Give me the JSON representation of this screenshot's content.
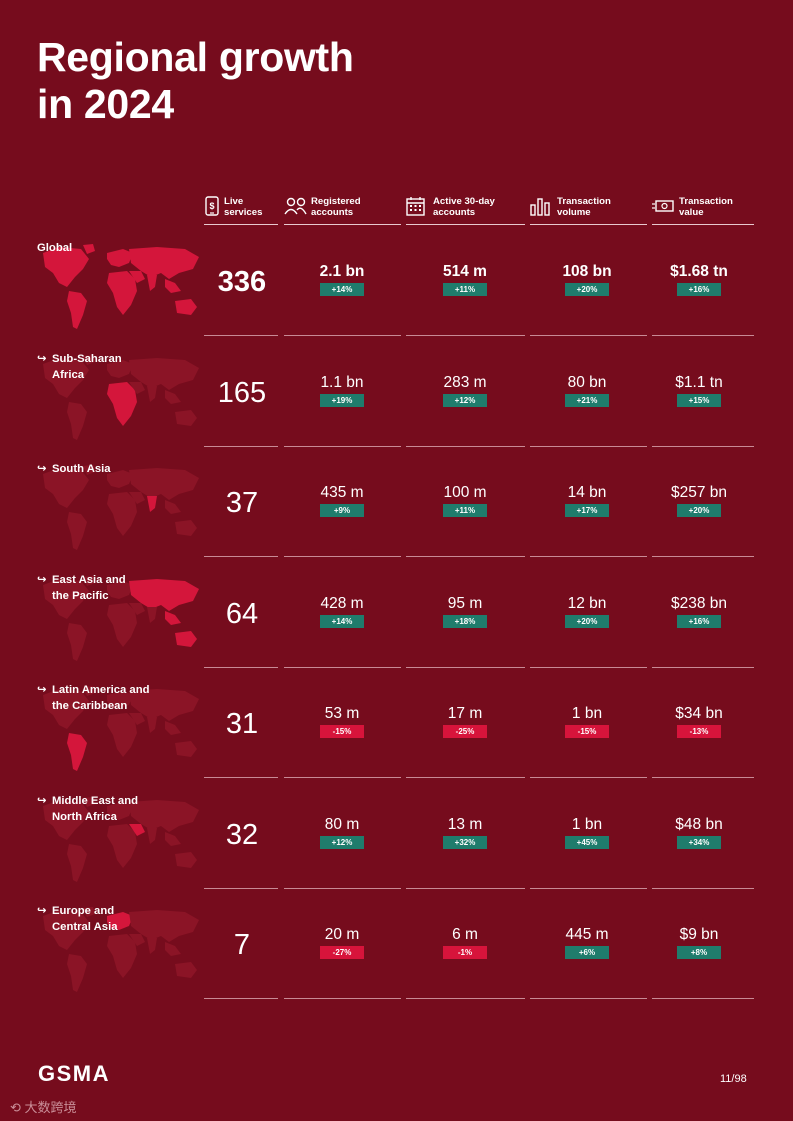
{
  "title": [
    "Regional growth",
    "in 2024"
  ],
  "columns": [
    {
      "icon": "phone-dollar-icon",
      "label": [
        "Live",
        "services"
      ]
    },
    {
      "icon": "people-icon",
      "label": [
        "Registered",
        "accounts"
      ]
    },
    {
      "icon": "calendar-icon",
      "label": [
        "Active 30-day",
        "accounts"
      ]
    },
    {
      "icon": "bar-chart-icon",
      "label": [
        "Transaction",
        "volume"
      ]
    },
    {
      "icon": "banknote-icon",
      "label": [
        "Transaction",
        "value"
      ]
    }
  ],
  "regions": [
    {
      "name": [
        "Global"
      ],
      "highlight": "global",
      "live": "336",
      "cells": [
        {
          "value": "2.1 bn",
          "change": "+14%"
        },
        {
          "value": "514 m",
          "change": "+11%"
        },
        {
          "value": "108 bn",
          "change": "+20%"
        },
        {
          "value": "$1.68 tn",
          "change": "+16%"
        }
      ]
    },
    {
      "name": [
        "Sub-Saharan",
        "Africa"
      ],
      "highlight": "ssa",
      "live": "165",
      "cells": [
        {
          "value": "1.1 bn",
          "change": "+19%"
        },
        {
          "value": "283 m",
          "change": "+12%"
        },
        {
          "value": "80 bn",
          "change": "+21%"
        },
        {
          "value": "$1.1 tn",
          "change": "+15%"
        }
      ]
    },
    {
      "name": [
        "South Asia"
      ],
      "highlight": "sa",
      "live": "37",
      "cells": [
        {
          "value": "435 m",
          "change": "+9%"
        },
        {
          "value": "100 m",
          "change": "+11%"
        },
        {
          "value": "14 bn",
          "change": "+17%"
        },
        {
          "value": "$257 bn",
          "change": "+20%"
        }
      ]
    },
    {
      "name": [
        "East Asia and",
        "the Pacific"
      ],
      "highlight": "eap",
      "live": "64",
      "cells": [
        {
          "value": "428 m",
          "change": "+14%"
        },
        {
          "value": "95 m",
          "change": "+18%"
        },
        {
          "value": "12 bn",
          "change": "+20%"
        },
        {
          "value": "$238 bn",
          "change": "+16%"
        }
      ]
    },
    {
      "name": [
        "Latin America and",
        "the Caribbean"
      ],
      "highlight": "lac",
      "live": "31",
      "cells": [
        {
          "value": "53 m",
          "change": "-15%"
        },
        {
          "value": "17 m",
          "change": "-25%"
        },
        {
          "value": "1 bn",
          "change": "-15%"
        },
        {
          "value": "$34 bn",
          "change": "-13%"
        }
      ]
    },
    {
      "name": [
        "Middle East and",
        "North Africa"
      ],
      "highlight": "mena",
      "live": "32",
      "cells": [
        {
          "value": "80 m",
          "change": "+12%"
        },
        {
          "value": "13 m",
          "change": "+32%"
        },
        {
          "value": "1 bn",
          "change": "+45%"
        },
        {
          "value": "$48 bn",
          "change": "+34%"
        }
      ]
    },
    {
      "name": [
        "Europe and",
        "Central Asia"
      ],
      "highlight": "eca",
      "live": "7",
      "cells": [
        {
          "value": "20 m",
          "change": "-27%"
        },
        {
          "value": "6 m",
          "change": "-1%"
        },
        {
          "value": "445 m",
          "change": "+6%"
        },
        {
          "value": "$9 bn",
          "change": "+8%"
        }
      ]
    }
  ],
  "footer": {
    "logo": "GSMA",
    "page": "11/98",
    "watermark": "大数跨境"
  },
  "colors": {
    "background": "#760c1d",
    "positive": "#1f7c6c",
    "negative": "#d7143b",
    "map_highlight": "#d4163b",
    "map_base": "#8b1426"
  }
}
